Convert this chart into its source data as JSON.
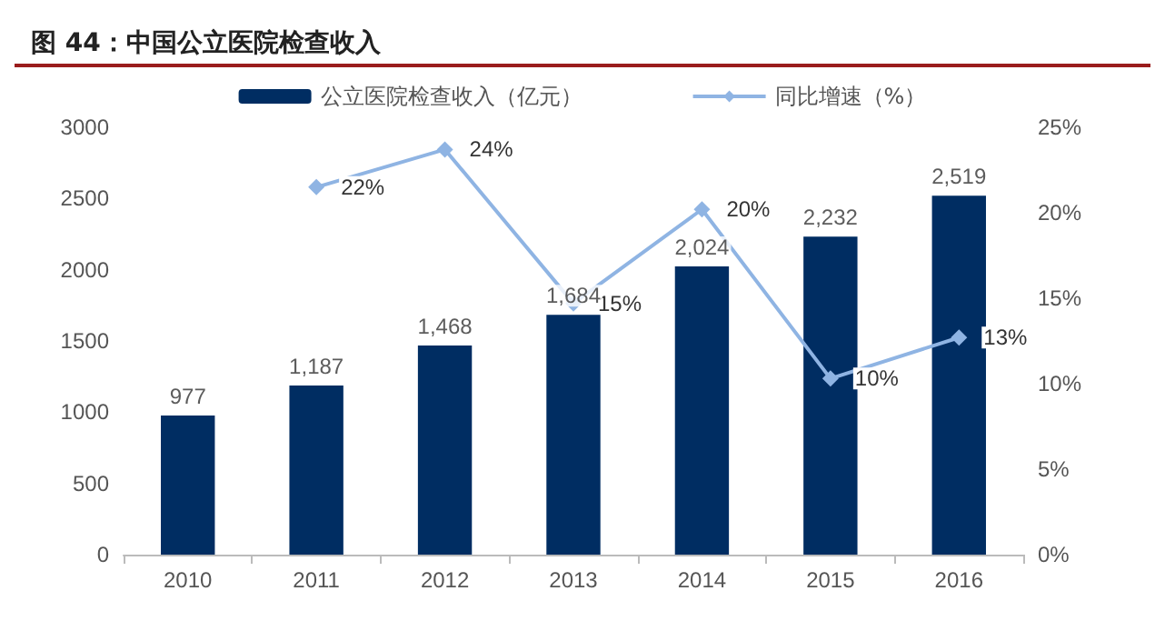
{
  "chart_data": {
    "type": "bar",
    "title": "图 44：中国公立医院检查收入",
    "categories": [
      "2010",
      "2011",
      "2012",
      "2013",
      "2014",
      "2015",
      "2016"
    ],
    "series": [
      {
        "name": "公立医院检查收入（亿元）",
        "color": "#002d62",
        "values": [
          977,
          1187,
          1468,
          1684,
          2024,
          2232,
          2519
        ],
        "value_labels": [
          "977",
          "1,187",
          "1,468",
          "1,684",
          "2,024",
          "2,232",
          "2,519"
        ]
      },
      {
        "name": "同比增速（%）",
        "type": "line",
        "axis": "y2",
        "color": "#8fb4e3",
        "marker": "diamond",
        "line_style": "solid",
        "values": [
          null,
          21.5,
          23.7,
          14.7,
          20.2,
          10.3,
          12.7
        ],
        "value_labels": [
          null,
          "22%",
          "24%",
          "15%",
          "20%",
          "10%",
          "13%"
        ]
      }
    ],
    "ylim": [
      0,
      3000
    ],
    "yticks": [
      0,
      500,
      1000,
      1500,
      2000,
      2500,
      3000
    ],
    "y2lim": [
      0,
      25
    ],
    "y2ticks": [
      {
        "value": 0,
        "label": "0%"
      },
      {
        "value": 5,
        "label": "5%"
      },
      {
        "value": 10,
        "label": "10%"
      },
      {
        "value": 15,
        "label": "15%"
      },
      {
        "value": 20,
        "label": "20%"
      },
      {
        "value": 25,
        "label": "25%"
      }
    ],
    "grid": false,
    "legend": "top"
  }
}
